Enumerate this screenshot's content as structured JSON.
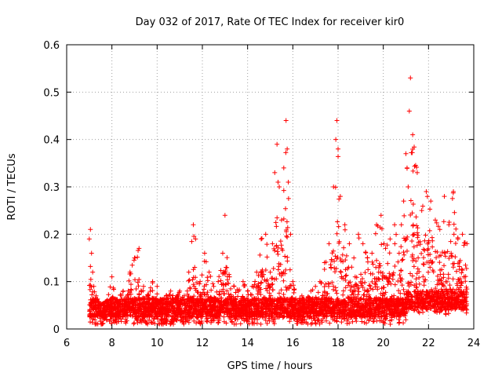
{
  "chart_data": {
    "type": "scatter",
    "title": "Day 032 of 2017, Rate Of TEC Index for receiver kir0",
    "xlabel": "GPS time / hours",
    "ylabel": "ROTI / TECUs",
    "xlim": [
      6,
      24
    ],
    "ylim": [
      0,
      0.6
    ],
    "x_ticks": [
      6,
      8,
      10,
      12,
      14,
      16,
      18,
      20,
      22,
      24
    ],
    "x_tick_labels": [
      "6",
      "8",
      "10",
      "12",
      "14",
      "16",
      "18",
      "20",
      "22",
      "24"
    ],
    "y_ticks": [
      0,
      0.1,
      0.2,
      0.3,
      0.4,
      0.5,
      0.6
    ],
    "y_tick_labels": [
      "0",
      "0.1",
      "0.2",
      "0.3",
      "0.4",
      "0.5",
      "0.6"
    ],
    "grid": true,
    "marker": "plus",
    "series": [
      {
        "name": "ROTI",
        "color": "#ff0000",
        "x": [
          7.0,
          7.05,
          7.1,
          7.15,
          7.2,
          7.3,
          7.5,
          7.8,
          8.0,
          8.2,
          8.5,
          8.8,
          9.0,
          9.2,
          9.4,
          9.6,
          9.8,
          10.0,
          10.2,
          10.4,
          10.6,
          10.8,
          11.0,
          11.2,
          11.4,
          11.6,
          11.7,
          11.9,
          12.1,
          12.3,
          12.5,
          12.7,
          12.9,
          13.0,
          13.2,
          13.4,
          13.6,
          13.8,
          14.0,
          14.2,
          14.4,
          14.6,
          14.8,
          15.0,
          15.1,
          15.2,
          15.3,
          15.4,
          15.5,
          15.6,
          15.7,
          15.75,
          15.8,
          15.9,
          16.0,
          16.2,
          16.4,
          16.6,
          16.8,
          17.0,
          17.2,
          17.4,
          17.6,
          17.8,
          17.9,
          17.95,
          18.0,
          18.1,
          18.3,
          18.5,
          18.7,
          18.9,
          19.1,
          19.3,
          19.5,
          19.7,
          19.9,
          20.1,
          20.3,
          20.5,
          20.7,
          20.8,
          20.9,
          21.0,
          21.05,
          21.1,
          21.15,
          21.2,
          21.3,
          21.5,
          21.7,
          21.9,
          22.1,
          22.3,
          22.5,
          22.7,
          22.9,
          23.1,
          23.3,
          23.5,
          23.7
        ],
        "y": [
          0.19,
          0.21,
          0.16,
          0.12,
          0.09,
          0.07,
          0.05,
          0.06,
          0.11,
          0.06,
          0.08,
          0.12,
          0.15,
          0.17,
          0.09,
          0.07,
          0.1,
          0.09,
          0.06,
          0.07,
          0.08,
          0.06,
          0.08,
          0.07,
          0.12,
          0.22,
          0.19,
          0.1,
          0.16,
          0.12,
          0.09,
          0.1,
          0.16,
          0.24,
          0.11,
          0.09,
          0.08,
          0.1,
          0.08,
          0.09,
          0.12,
          0.19,
          0.2,
          0.12,
          0.18,
          0.33,
          0.39,
          0.3,
          0.23,
          0.34,
          0.44,
          0.38,
          0.31,
          0.2,
          0.1,
          0.06,
          0.07,
          0.06,
          0.08,
          0.09,
          0.1,
          0.14,
          0.18,
          0.3,
          0.4,
          0.44,
          0.38,
          0.28,
          0.22,
          0.18,
          0.15,
          0.2,
          0.18,
          0.15,
          0.16,
          0.22,
          0.24,
          0.17,
          0.19,
          0.22,
          0.16,
          0.22,
          0.27,
          0.37,
          0.34,
          0.3,
          0.46,
          0.53,
          0.41,
          0.33,
          0.25,
          0.29,
          0.27,
          0.23,
          0.21,
          0.28,
          0.22,
          0.29,
          0.19,
          0.2,
          0.18
        ]
      }
    ]
  }
}
